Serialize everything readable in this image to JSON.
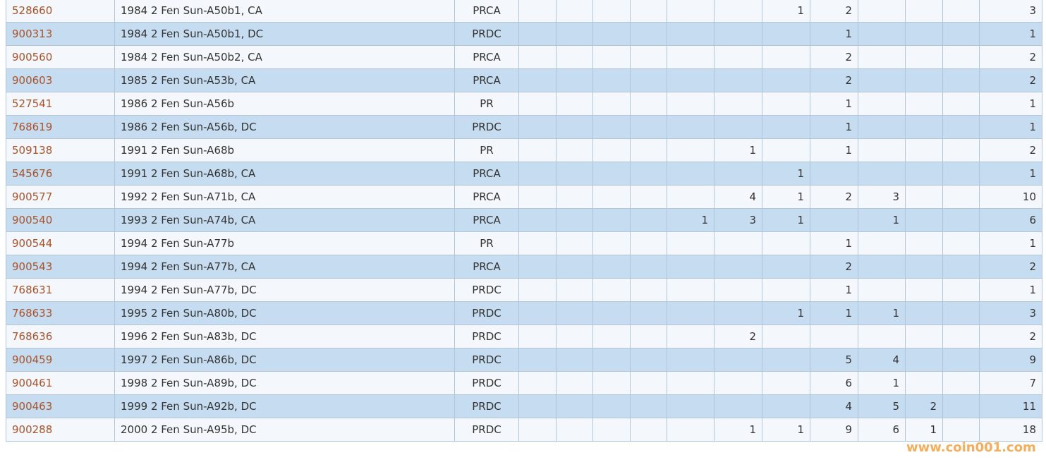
{
  "table": {
    "rows": [
      [
        "528660",
        "1984 2 Fen Sun-A50b1, CA",
        "PRCA",
        null,
        null,
        null,
        null,
        null,
        null,
        1,
        2,
        null,
        null,
        null,
        3
      ],
      [
        "900313",
        "1984 2 Fen Sun-A50b1, DC",
        "PRDC",
        null,
        null,
        null,
        null,
        null,
        null,
        null,
        1,
        null,
        null,
        null,
        1
      ],
      [
        "900560",
        "1984 2 Fen Sun-A50b2, CA",
        "PRCA",
        null,
        null,
        null,
        null,
        null,
        null,
        null,
        2,
        null,
        null,
        null,
        2
      ],
      [
        "900603",
        "1985 2 Fen Sun-A53b, CA",
        "PRCA",
        null,
        null,
        null,
        null,
        null,
        null,
        null,
        2,
        null,
        null,
        null,
        2
      ],
      [
        "527541",
        "1986 2 Fen Sun-A56b",
        "PR",
        null,
        null,
        null,
        null,
        null,
        null,
        null,
        1,
        null,
        null,
        null,
        1
      ],
      [
        "768619",
        "1986 2 Fen Sun-A56b, DC",
        "PRDC",
        null,
        null,
        null,
        null,
        null,
        null,
        null,
        1,
        null,
        null,
        null,
        1
      ],
      [
        "509138",
        "1991 2 Fen Sun-A68b",
        "PR",
        null,
        null,
        null,
        null,
        null,
        1,
        null,
        1,
        null,
        null,
        null,
        2
      ],
      [
        "545676",
        "1991 2 Fen Sun-A68b, CA",
        "PRCA",
        null,
        null,
        null,
        null,
        null,
        null,
        1,
        null,
        null,
        null,
        null,
        1
      ],
      [
        "900577",
        "1992 2 Fen Sun-A71b, CA",
        "PRCA",
        null,
        null,
        null,
        null,
        null,
        4,
        1,
        2,
        3,
        null,
        null,
        10
      ],
      [
        "900540",
        "1993 2 Fen Sun-A74b, CA",
        "PRCA",
        null,
        null,
        null,
        null,
        1,
        3,
        1,
        null,
        1,
        null,
        null,
        6
      ],
      [
        "900544",
        "1994 2 Fen Sun-A77b",
        "PR",
        null,
        null,
        null,
        null,
        null,
        null,
        null,
        1,
        null,
        null,
        null,
        1
      ],
      [
        "900543",
        "1994 2 Fen Sun-A77b, CA",
        "PRCA",
        null,
        null,
        null,
        null,
        null,
        null,
        null,
        2,
        null,
        null,
        null,
        2
      ],
      [
        "768631",
        "1994 2 Fen Sun-A77b, DC",
        "PRDC",
        null,
        null,
        null,
        null,
        null,
        null,
        null,
        1,
        null,
        null,
        null,
        1
      ],
      [
        "768633",
        "1995 2 Fen Sun-A80b, DC",
        "PRDC",
        null,
        null,
        null,
        null,
        null,
        null,
        1,
        1,
        1,
        null,
        null,
        3
      ],
      [
        "768636",
        "1996 2 Fen Sun-A83b, DC",
        "PRDC",
        null,
        null,
        null,
        null,
        null,
        2,
        null,
        null,
        null,
        null,
        null,
        2
      ],
      [
        "900459",
        "1997 2 Fen Sun-A86b, DC",
        "PRDC",
        null,
        null,
        null,
        null,
        null,
        null,
        null,
        5,
        4,
        null,
        null,
        9
      ],
      [
        "900461",
        "1998 2 Fen Sun-A89b, DC",
        "PRDC",
        null,
        null,
        null,
        null,
        null,
        null,
        null,
        6,
        1,
        null,
        null,
        7
      ],
      [
        "900463",
        "1999 2 Fen Sun-A92b, DC",
        "PRDC",
        null,
        null,
        null,
        null,
        null,
        null,
        null,
        4,
        5,
        2,
        null,
        11
      ],
      [
        "900288",
        "2000 2 Fen Sun-A95b, DC",
        "PRDC",
        null,
        null,
        null,
        null,
        null,
        1,
        1,
        9,
        6,
        1,
        null,
        18
      ]
    ]
  },
  "watermark": "www.coin001.com"
}
